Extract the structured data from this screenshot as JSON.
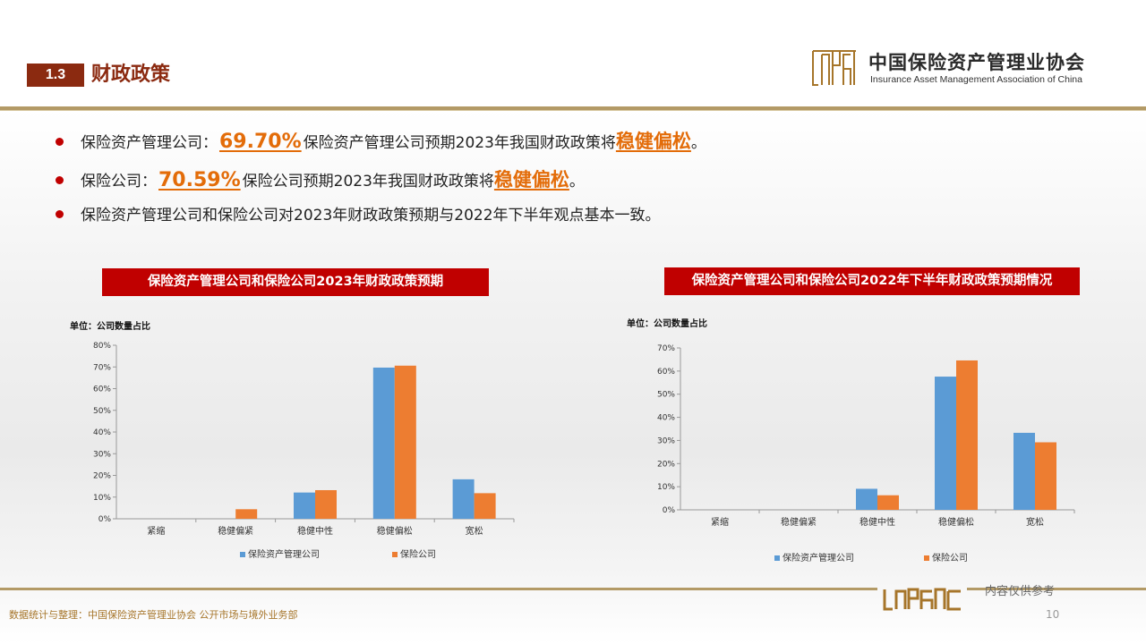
{
  "header": {
    "section_number": "1.3",
    "section_title": "财政政策",
    "org_name_cn": "中国保险资产管理业协会",
    "org_name_en": "Insurance Asset Management Association of China"
  },
  "bullets": [
    {
      "prefix": "保险资产管理公司：",
      "highlight": "69.70%",
      "text": "保险资产管理公司预期2023年我国财政政策将",
      "emphasis": "稳健偏松",
      "suffix": "。"
    },
    {
      "prefix": "保险公司：",
      "highlight": "70.59%",
      "text": "保险公司预期2023年我国财政政策将",
      "emphasis": "稳健偏松",
      "suffix": "。"
    },
    {
      "text": "保险资产管理公司和保险公司对2023年财政政策预期与2022年下半年观点基本一致。"
    }
  ],
  "chart_data": [
    {
      "type": "bar",
      "title": "保险资产管理公司和保险公司2023年财政政策预期",
      "unit_label": "单位：公司数量占比",
      "categories": [
        "紧缩",
        "稳健偏紧",
        "稳健中性",
        "稳健偏松",
        "宽松"
      ],
      "ylim": [
        0,
        80
      ],
      "yticks": [
        "0%",
        "10%",
        "20%",
        "30%",
        "40%",
        "50%",
        "60%",
        "70%",
        "80%"
      ],
      "series": [
        {
          "name": "保险资产管理公司",
          "color": "#5b9bd5",
          "values": [
            0,
            0,
            12.1,
            69.7,
            18.2
          ]
        },
        {
          "name": "保险公司",
          "color": "#ed7d31",
          "values": [
            0,
            4.4,
            13.2,
            70.59,
            11.8
          ]
        }
      ],
      "legend": "bottom"
    },
    {
      "type": "bar",
      "title": "保险资产管理公司和保险公司2022年下半年财政政策预期情况",
      "unit_label": "单位：公司数量占比",
      "categories": [
        "紧缩",
        "稳健偏紧",
        "稳健中性",
        "稳健偏松",
        "宽松"
      ],
      "ylim": [
        0,
        70
      ],
      "yticks": [
        "0%",
        "10%",
        "20%",
        "30%",
        "40%",
        "50%",
        "60%",
        "70%"
      ],
      "series": [
        {
          "name": "保险资产管理公司",
          "color": "#5b9bd5",
          "values": [
            0,
            0,
            9.1,
            57.6,
            33.3
          ]
        },
        {
          "name": "保险公司",
          "color": "#ed7d31",
          "values": [
            0,
            0,
            6.3,
            64.6,
            29.2
          ]
        }
      ],
      "legend": "bottom"
    }
  ],
  "footer": {
    "source": "数据统计与整理：中国保险资产管理业协会 公开市场与境外业务部",
    "note": "内容仅供参考",
    "page_number": "10"
  }
}
